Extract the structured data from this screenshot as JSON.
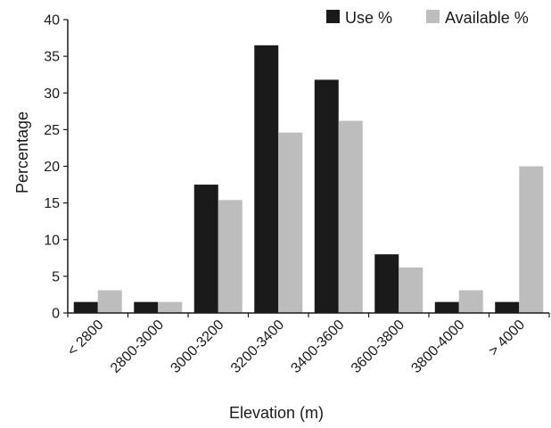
{
  "chart_data": {
    "type": "bar",
    "xlabel": "Elevation (m)",
    "ylabel": "Percentage",
    "ylim": [
      0,
      40
    ],
    "yticks": [
      0,
      5,
      10,
      15,
      20,
      25,
      30,
      35,
      40
    ],
    "grid": false,
    "legend_position": "top-right",
    "categories": [
      "< 2800",
      "2800-3000",
      "3000-3200",
      "3200-3400",
      "3400-3600",
      "3600-3800",
      "3800-4000",
      "> 4000"
    ],
    "series": [
      {
        "name": "Use %",
        "color": "#1a1a1a",
        "values": [
          1.5,
          1.5,
          17.5,
          36.5,
          31.8,
          8.0,
          1.5,
          1.5
        ]
      },
      {
        "name": "Available %",
        "color": "#bdbdbd",
        "values": [
          3.1,
          1.5,
          15.4,
          24.6,
          26.2,
          6.2,
          3.1,
          20.0
        ]
      }
    ]
  }
}
